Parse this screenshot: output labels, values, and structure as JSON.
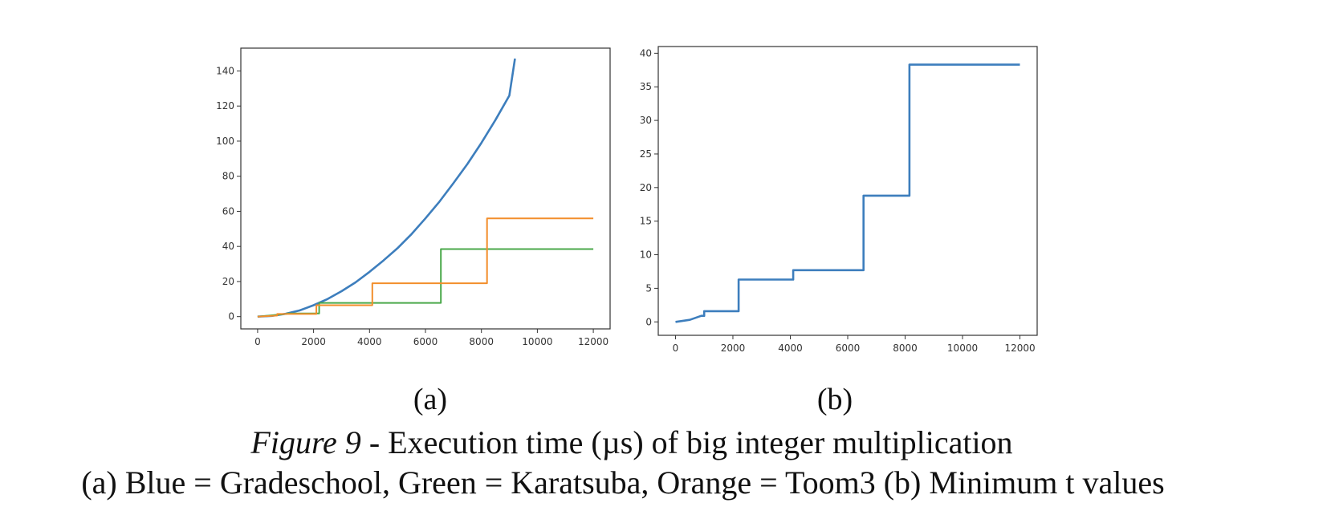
{
  "caption": {
    "figure_label": "Figure 9",
    "line1_rest": " - Execution time (µs) of big integer multiplication",
    "line2": "(a) Blue = Gradeschool, Green = Karatsuba, Orange = Toom3 (b) Minimum t values"
  },
  "colors": {
    "blue": "#3d7ebd",
    "orange": "#f28e2b",
    "green": "#4aa84a",
    "axis": "#333333"
  },
  "chart_data": [
    {
      "type": "line",
      "label": "(a)",
      "title": "",
      "xlabel": "",
      "ylabel": "",
      "xlim": [
        -600,
        12600
      ],
      "ylim": [
        -7,
        153
      ],
      "xticks": [
        0,
        2000,
        4000,
        6000,
        8000,
        10000,
        12000
      ],
      "yticks": [
        0,
        20,
        40,
        60,
        80,
        100,
        120,
        140
      ],
      "grid": false,
      "series": [
        {
          "color": "blue",
          "x": [
            0,
            500,
            1000,
            1500,
            2000,
            2500,
            3000,
            3500,
            4000,
            4500,
            5000,
            5500,
            6000,
            6500,
            7000,
            7500,
            8000,
            8500,
            9000,
            9200
          ],
          "y": [
            0,
            0.4,
            1.6,
            3.5,
            6.5,
            10.0,
            14.5,
            19.5,
            25.5,
            32.0,
            39.0,
            47.0,
            56.0,
            65.5,
            76.0,
            87.0,
            99.0,
            112.0,
            126.0,
            147.0
          ]
        },
        {
          "color": "green",
          "x": [
            0,
            600,
            1050,
            1050,
            2200,
            2200,
            6550,
            6550,
            12000
          ],
          "y": [
            0,
            0.9,
            1.6,
            1.8,
            1.8,
            7.8,
            7.8,
            38.5,
            38.5
          ]
        },
        {
          "color": "orange",
          "x": [
            0,
            700,
            700,
            2100,
            2100,
            4100,
            4100,
            8200,
            8200,
            12000
          ],
          "y": [
            0,
            0.6,
            1.5,
            1.5,
            6.5,
            6.5,
            19,
            19,
            56,
            56
          ]
        }
      ]
    },
    {
      "type": "line",
      "label": "(b)",
      "title": "",
      "xlabel": "",
      "ylabel": "",
      "xlim": [
        -600,
        12600
      ],
      "ylim": [
        -2,
        41
      ],
      "xticks": [
        0,
        2000,
        4000,
        6000,
        8000,
        10000,
        12000
      ],
      "yticks": [
        0,
        5,
        10,
        15,
        20,
        25,
        30,
        35,
        40
      ],
      "grid": false,
      "series": [
        {
          "color": "blue",
          "x": [
            0,
            500,
            700,
            900,
            1000,
            1000,
            2200,
            2200,
            4100,
            4100,
            6550,
            6550,
            8150,
            8150,
            12000
          ],
          "y": [
            0,
            0.3,
            0.6,
            0.9,
            0.9,
            1.6,
            1.6,
            6.3,
            6.3,
            7.7,
            7.7,
            18.8,
            18.8,
            38.3,
            38.3
          ]
        }
      ]
    }
  ]
}
